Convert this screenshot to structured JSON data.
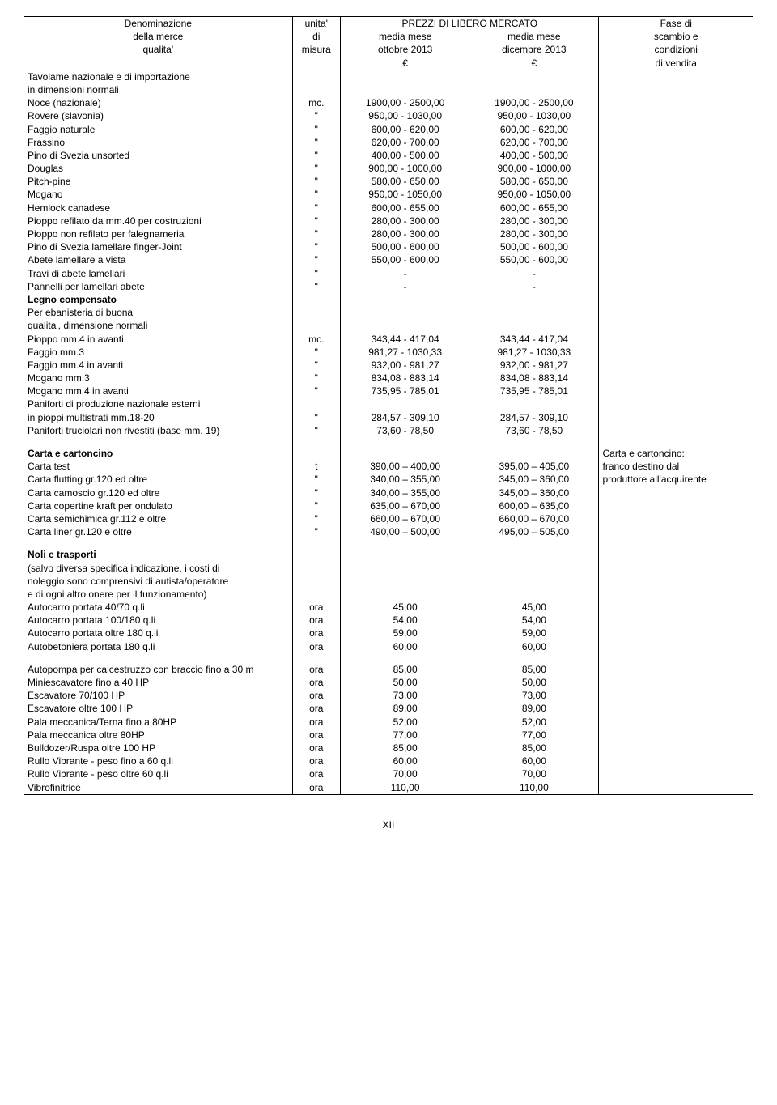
{
  "header": {
    "col1_l1": "Denominazione",
    "col1_l2": "della merce",
    "col1_l3": "qualita'",
    "col2_l1": "unita'",
    "col2_l2": "di",
    "col2_l3": "misura",
    "col34_l1": "PREZZI DI LIBERO MERCATO",
    "col3_l2": "media mese",
    "col3_l3": "ottobre 2013",
    "col3_l4": "€",
    "col4_l2": "media mese",
    "col4_l3": "dicembre 2013",
    "col4_l4": "€",
    "col5_l1": "Fase di",
    "col5_l2": "scambio e",
    "col5_l3": "condizioni",
    "col5_l4": "di vendita"
  },
  "sections": {
    "s0": {
      "title1": "Tavolame nazionale e di importazione",
      "title2": "in dimensioni  normali",
      "rows": [
        {
          "d": "Noce (nazionale)",
          "u": "mc.",
          "p1": "1900,00 - 2500,00",
          "p2": "1900,00 - 2500,00"
        },
        {
          "d": "Rovere (slavonia)",
          "u": "\"",
          "p1": "950,00 - 1030,00",
          "p2": "950,00 - 1030,00"
        },
        {
          "d": "Faggio naturale",
          "u": "\"",
          "p1": "600,00 - 620,00",
          "p2": "600,00 - 620,00"
        },
        {
          "d": "Frassino",
          "u": "\"",
          "p1": "620,00 - 700,00",
          "p2": "620,00 - 700,00"
        },
        {
          "d": "Pino di Svezia unsorted",
          "u": "\"",
          "p1": "400,00 - 500,00",
          "p2": "400,00 - 500,00"
        },
        {
          "d": "Douglas",
          "u": "\"",
          "p1": "900,00 - 1000,00",
          "p2": "900,00 - 1000,00"
        },
        {
          "d": "Pitch-pine",
          "u": "\"",
          "p1": "580,00 - 650,00",
          "p2": "580,00 - 650,00"
        },
        {
          "d": "Mogano",
          "u": "\"",
          "p1": "950,00 - 1050,00",
          "p2": "950,00 - 1050,00"
        },
        {
          "d": "Hemlock canadese",
          "u": "\"",
          "p1": "600,00 - 655,00",
          "p2": "600,00 - 655,00"
        },
        {
          "d": "Pioppo refilato da mm.40 per costruzioni",
          "u": "\"",
          "p1": "280,00 - 300,00",
          "p2": "280,00 - 300,00"
        },
        {
          "d": "Pioppo non refilato per falegnameria",
          "u": "\"",
          "p1": "280,00 - 300,00",
          "p2": "280,00 - 300,00"
        },
        {
          "d": "Pino di Svezia lamellare finger-Joint",
          "u": "\"",
          "p1": "500,00 - 600,00",
          "p2": "500,00 - 600,00"
        },
        {
          "d": "Abete lamellare a vista",
          "u": "\"",
          "p1": "550,00 - 600,00",
          "p2": "550,00 - 600,00"
        },
        {
          "d": "Travi di abete lamellari",
          "u": "\"",
          "p1": "-",
          "p2": "-"
        },
        {
          "d": "Pannelli per lamellari abete",
          "u": "\"",
          "p1": "-",
          "p2": "-"
        }
      ]
    },
    "s1": {
      "title": "Legno compensato",
      "sub1": "Per ebanisteria  di buona",
      "sub2": "qualita', dimensione normali",
      "rows": [
        {
          "d": "Pioppo mm.4 in avanti",
          "u": "mc.",
          "p1": "343,44 - 417,04",
          "p2": "343,44 - 417,04"
        },
        {
          "d": "Faggio mm.3",
          "u": "\"",
          "p1": "981,27 - 1030,33",
          "p2": "981,27 - 1030,33"
        },
        {
          "d": "Faggio mm.4 in avanti",
          "u": "\"",
          "p1": "932,00 - 981,27",
          "p2": "932,00 - 981,27"
        },
        {
          "d": "Mogano mm.3",
          "u": "\"",
          "p1": "834,08 - 883,14",
          "p2": "834,08 - 883,14"
        },
        {
          "d": "Mogano mm.4 in avanti",
          "u": "\"",
          "p1": "735,95 - 785,01",
          "p2": "735,95 - 785,01"
        }
      ],
      "sub3": "Paniforti di produzione nazionale esterni",
      "rows2": [
        {
          "d": "in pioppi multistrati mm.18-20",
          "u": "\"",
          "p1": "284,57 - 309,10",
          "p2": "284,57 - 309,10"
        },
        {
          "d": "Paniforti truciolari non rivestiti (base mm. 19)",
          "u": "\"",
          "p1": "73,60 - 78,50",
          "p2": "73,60 - 78,50"
        }
      ]
    },
    "s2": {
      "title": "Carta e cartoncino",
      "note1": "Carta e cartoncino:",
      "note2": "franco destino dal",
      "note3": "produttore all'acquirente",
      "rows": [
        {
          "d": "Carta test",
          "u": "t",
          "p1": "390,00 – 400,00",
          "p2": "395,00 – 405,00"
        },
        {
          "d": "Carta flutting gr.120 ed oltre",
          "u": "\"",
          "p1": "340,00 – 355,00",
          "p2": "345,00 – 360,00"
        },
        {
          "d": "Carta camoscio gr.120 ed oltre",
          "u": "\"",
          "p1": "340,00 – 355,00",
          "p2": "345,00 – 360,00"
        },
        {
          "d": "Carta copertine kraft per ondulato",
          "u": "\"",
          "p1": "635,00 – 670,00",
          "p2": "600,00 – 635,00"
        },
        {
          "d": "Carta semichimica gr.112 e oltre",
          "u": "\"",
          "p1": "660,00 – 670,00",
          "p2": "660,00 – 670,00"
        },
        {
          "d": "Carta liner gr.120 e oltre",
          "u": "\"",
          "p1": "490,00 – 500,00",
          "p2": "495,00 – 505,00"
        }
      ]
    },
    "s3": {
      "title": "Noli e trasporti",
      "sub1": "(salvo diversa specifica indicazione, i costi di",
      "sub2": "noleggio sono comprensivi di autista/operatore",
      "sub3": "e di ogni altro onere per il funzionamento)",
      "rows": [
        {
          "d": "Autocarro portata 40/70 q.li",
          "u": "ora",
          "p1": "45,00",
          "p2": "45,00"
        },
        {
          "d": "Autocarro portata 100/180 q.li",
          "u": "ora",
          "p1": "54,00",
          "p2": "54,00"
        },
        {
          "d": "Autocarro portata oltre 180 q.li",
          "u": "ora",
          "p1": "59,00",
          "p2": "59,00"
        },
        {
          "d": "Autobetoniera portata 180 q.li",
          "u": "ora",
          "p1": "60,00",
          "p2": "60,00"
        }
      ],
      "rows2": [
        {
          "d": "Autopompa per calcestruzzo con braccio fino a 30 m",
          "u": "ora",
          "p1": "85,00",
          "p2": "85,00"
        },
        {
          "d": "Miniescavatore fino a 40 HP",
          "u": "ora",
          "p1": "50,00",
          "p2": "50,00"
        },
        {
          "d": "Escavatore 70/100 HP",
          "u": "ora",
          "p1": "73,00",
          "p2": "73,00"
        },
        {
          "d": "Escavatore oltre 100 HP",
          "u": "ora",
          "p1": "89,00",
          "p2": "89,00"
        },
        {
          "d": "Pala meccanica/Terna fino a 80HP",
          "u": "ora",
          "p1": "52,00",
          "p2": "52,00"
        },
        {
          "d": "Pala meccanica oltre 80HP",
          "u": "ora",
          "p1": "77,00",
          "p2": "77,00"
        },
        {
          "d": "Bulldozer/Ruspa oltre 100 HP",
          "u": "ora",
          "p1": "85,00",
          "p2": "85,00"
        },
        {
          "d": "Rullo Vibrante - peso fino a 60 q.li",
          "u": "ora",
          "p1": "60,00",
          "p2": "60,00"
        },
        {
          "d": "Rullo Vibrante - peso oltre 60 q.li",
          "u": "ora",
          "p1": "70,00",
          "p2": "70,00"
        },
        {
          "d": "Vibrofinitrice",
          "u": "ora",
          "p1": "110,00",
          "p2": "110,00"
        }
      ]
    }
  },
  "footer": "XII"
}
